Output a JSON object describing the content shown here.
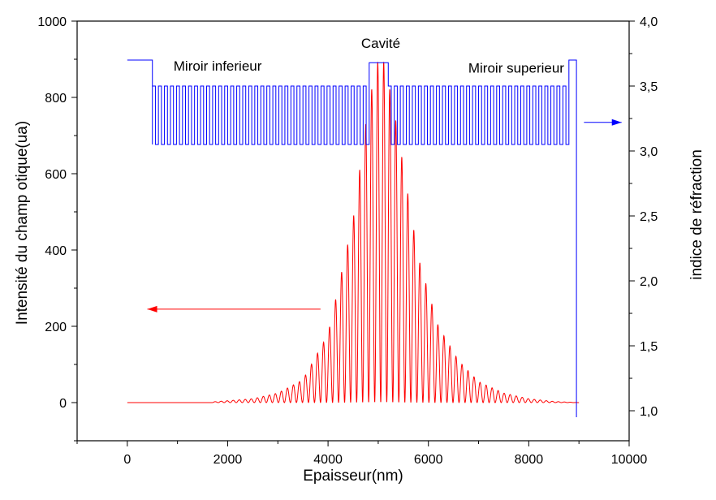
{
  "chart_data": {
    "type": "line",
    "title": "",
    "xlabel": "Epaisseur(nm)",
    "ylabel_left": "Intensité du champ otique(ua)",
    "ylabel_right": "indice de réfraction",
    "xlim": [
      -1000,
      10000
    ],
    "ylim_left": [
      -100,
      1000
    ],
    "ylim_right": [
      0.769,
      4.0
    ],
    "x_ticks": [
      "0",
      "2000",
      "4000",
      "6000",
      "8000",
      "10000"
    ],
    "x_tick_values": [
      0,
      2000,
      4000,
      6000,
      8000,
      10000
    ],
    "y_left_ticks": [
      "0",
      "200",
      "400",
      "600",
      "800",
      "1000"
    ],
    "y_left_tick_values": [
      0,
      200,
      400,
      600,
      800,
      1000
    ],
    "y_right_ticks": [
      "1,0",
      "1,5",
      "2,0",
      "2,5",
      "3,0",
      "3,5",
      "4,0"
    ],
    "y_right_tick_values": [
      1.0,
      1.5,
      2.0,
      2.5,
      3.0,
      3.5,
      4.0
    ],
    "grid": false,
    "legend": "none",
    "annotations": [
      {
        "text": "Miroir inferieur",
        "x": 1800,
        "y": 870
      },
      {
        "text": "Cavité",
        "x": 5050,
        "y": 930
      },
      {
        "text": "Miroir superieur",
        "x": 7750,
        "y": 865
      }
    ],
    "series": [
      {
        "axis": "left",
        "color": "#ff0000",
        "description_values": {
          "x_range": [
            0,
            9000
          ],
          "peak_x": 5050,
          "peak_value": 900,
          "oscillation_period": 120,
          "envelope_points": [
            [
              1700,
              2
            ],
            [
              2500,
              10
            ],
            [
              3000,
              25
            ],
            [
              3500,
              60
            ],
            [
              4000,
              180
            ],
            [
              4500,
              480
            ],
            [
              4800,
              780
            ],
            [
              5000,
              900
            ],
            [
              5100,
              900
            ],
            [
              5300,
              780
            ],
            [
              5500,
              620
            ],
            [
              5800,
              380
            ],
            [
              6200,
              200
            ],
            [
              6600,
              110
            ],
            [
              7000,
              55
            ],
            [
              7500,
              25
            ],
            [
              8000,
              10
            ],
            [
              8500,
              3
            ],
            [
              9000,
              0
            ]
          ]
        }
      },
      {
        "axis": "right",
        "color": "#0000ff",
        "description_values": {
          "x_range": [
            0,
            8950
          ],
          "outside_index": 3.7,
          "high_index": 3.5,
          "low_index": 3.05,
          "mirror_lower_range": [
            500,
            4800
          ],
          "mirror_upper_range": [
            5200,
            8800
          ],
          "cavity_peak_index": 3.68,
          "substrate_index": 1.0,
          "period": 120
        }
      }
    ],
    "arrows": [
      {
        "axis": "left",
        "color": "#ff0000",
        "from_x": 3850,
        "to_x": 400,
        "y": 245
      },
      {
        "axis": "right",
        "color": "#0000ff",
        "from_x": 9100,
        "to_x": 9850,
        "y": 3.22
      }
    ]
  }
}
